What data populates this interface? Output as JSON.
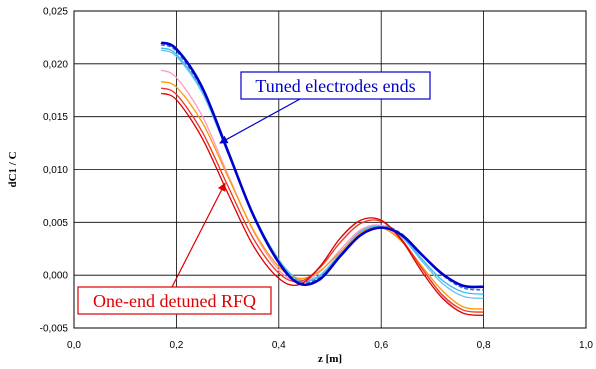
{
  "chart_data": {
    "type": "line",
    "title": "",
    "xlabel": "z [m]",
    "ylabel": "dC1 / C",
    "xlim": [
      0.0,
      1.0
    ],
    "ylim": [
      -0.005,
      0.025
    ],
    "x_ticks": [
      "0,0",
      "0,2",
      "0,4",
      "0,6",
      "0,8",
      "1,0"
    ],
    "y_ticks": [
      "-0,005",
      "0,000",
      "0,005",
      "0,010",
      "0,015",
      "0,020",
      "0,025"
    ],
    "grid": true,
    "legend": "none",
    "series": [
      {
        "color": "#0000cc",
        "dashed": false,
        "width": 2.6,
        "x": [
          0.17,
          0.2,
          0.25,
          0.3,
          0.35,
          0.4,
          0.44,
          0.48,
          0.52,
          0.56,
          0.6,
          0.64,
          0.68,
          0.72,
          0.76,
          0.8
        ],
        "y": [
          0.022,
          0.0214,
          0.0178,
          0.0118,
          0.0057,
          0.0012,
          -0.0008,
          -0.0004,
          0.0018,
          0.0038,
          0.0045,
          0.0038,
          0.0019,
          0.0001,
          -0.001,
          -0.0011
        ]
      },
      {
        "color": "#3a6fd8",
        "dashed": true,
        "width": 1.6,
        "x": [
          0.17,
          0.2,
          0.25,
          0.3,
          0.35,
          0.4,
          0.44,
          0.48,
          0.52,
          0.56,
          0.6,
          0.64,
          0.68,
          0.72,
          0.76,
          0.8
        ],
        "y": [
          0.0218,
          0.0212,
          0.0176,
          0.0117,
          0.0057,
          0.0013,
          -0.0006,
          -0.0002,
          0.002,
          0.0041,
          0.0047,
          0.0039,
          0.0019,
          0.0,
          -0.0012,
          -0.0014
        ]
      },
      {
        "color": "#33bbee",
        "dashed": false,
        "width": 1.3,
        "x": [
          0.17,
          0.2,
          0.25,
          0.3,
          0.35,
          0.4,
          0.44,
          0.48,
          0.52,
          0.56,
          0.6,
          0.64,
          0.68,
          0.72,
          0.76,
          0.8
        ],
        "y": [
          0.0215,
          0.0209,
          0.0174,
          0.0117,
          0.0058,
          0.0014,
          -0.0005,
          -0.0001,
          0.002,
          0.0041,
          0.0046,
          0.0037,
          0.0015,
          -0.0005,
          -0.0016,
          -0.0018
        ]
      },
      {
        "color": "#66c2f0",
        "dashed": false,
        "width": 1.3,
        "x": [
          0.17,
          0.2,
          0.25,
          0.3,
          0.35,
          0.4,
          0.44,
          0.48,
          0.52,
          0.56,
          0.6,
          0.64,
          0.68,
          0.72,
          0.76,
          0.8
        ],
        "y": [
          0.0213,
          0.0207,
          0.0173,
          0.0116,
          0.0058,
          0.0015,
          -0.0004,
          0.0,
          0.0021,
          0.0042,
          0.0047,
          0.0036,
          0.0013,
          -0.0008,
          -0.002,
          -0.0022
        ]
      },
      {
        "color": "#ff99cc",
        "dashed": false,
        "width": 1.3,
        "x": [
          0.17,
          0.2,
          0.25,
          0.3,
          0.35,
          0.4,
          0.44,
          0.48,
          0.52,
          0.56,
          0.6,
          0.64,
          0.68,
          0.72,
          0.76,
          0.8
        ],
        "y": [
          0.0194,
          0.0187,
          0.0151,
          0.0096,
          0.0042,
          0.0005,
          -0.0006,
          0.0003,
          0.0024,
          0.0043,
          0.0047,
          0.0033,
          0.0007,
          -0.002,
          -0.0036,
          -0.0038
        ]
      },
      {
        "color": "#ff9900",
        "dashed": false,
        "width": 1.3,
        "x": [
          0.17,
          0.2,
          0.25,
          0.3,
          0.35,
          0.4,
          0.44,
          0.48,
          0.52,
          0.56,
          0.6,
          0.64,
          0.68,
          0.72,
          0.76,
          0.8
        ],
        "y": [
          0.0183,
          0.0178,
          0.0145,
          0.0094,
          0.0043,
          0.0008,
          -0.0003,
          0.0004,
          0.0022,
          0.004,
          0.0045,
          0.0032,
          0.0008,
          -0.0015,
          -0.003,
          -0.0032
        ]
      },
      {
        "color": "#ee3322",
        "dashed": false,
        "width": 1.3,
        "x": [
          0.17,
          0.2,
          0.25,
          0.3,
          0.35,
          0.4,
          0.44,
          0.48,
          0.52,
          0.56,
          0.6,
          0.64,
          0.68,
          0.72,
          0.76,
          0.8
        ],
        "y": [
          0.0177,
          0.0171,
          0.0136,
          0.0085,
          0.0035,
          0.0002,
          -0.0006,
          0.0007,
          0.0031,
          0.0049,
          0.0051,
          0.0034,
          0.0006,
          -0.0019,
          -0.0033,
          -0.0035
        ]
      },
      {
        "color": "#dd0000",
        "dashed": false,
        "width": 1.3,
        "x": [
          0.17,
          0.2,
          0.25,
          0.3,
          0.35,
          0.4,
          0.44,
          0.48,
          0.52,
          0.56,
          0.6,
          0.64,
          0.68,
          0.72,
          0.76,
          0.8
        ],
        "y": [
          0.0172,
          0.0166,
          0.013,
          0.0078,
          0.0028,
          -0.0003,
          -0.0009,
          0.0008,
          0.0035,
          0.0052,
          0.0052,
          0.0033,
          0.0003,
          -0.0022,
          -0.0036,
          -0.0038
        ]
      }
    ],
    "annotations": [
      {
        "text": "Tuned electrodes ends",
        "color": "#0000cc",
        "arrow_to": [
          0.285,
          0.0125
        ]
      },
      {
        "text": "One-end detuned RFQ",
        "color": "#dd0000",
        "arrow_to": [
          0.295,
          0.0087
        ]
      }
    ]
  }
}
